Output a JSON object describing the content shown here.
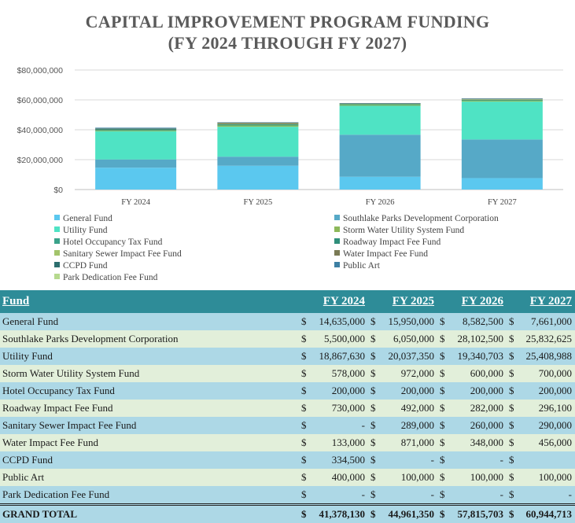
{
  "title_line1": "CAPITAL IMPROVEMENT PROGRAM FUNDING",
  "title_line2": "(FY 2024 THROUGH FY 2027)",
  "chart_data": {
    "type": "bar",
    "stacked": true,
    "categories": [
      "FY 2024",
      "FY 2025",
      "FY 2026",
      "FY 2027"
    ],
    "y_ticks": [
      "$0",
      "$20,000,000",
      "$40,000,000",
      "$60,000,000",
      "$80,000,000"
    ],
    "ylim": [
      0,
      80000000
    ],
    "series": [
      {
        "name": "General Fund",
        "color": "#5bc8ef",
        "values": [
          14635000,
          15950000,
          8582500,
          7661000
        ]
      },
      {
        "name": "Southlake Parks Development Corporation",
        "color": "#56a9c7",
        "values": [
          5500000,
          6050000,
          28102500,
          25832625
        ]
      },
      {
        "name": "Utility Fund",
        "color": "#4fe3c4",
        "values": [
          18867630,
          20037350,
          19340703,
          25408988
        ]
      },
      {
        "name": "Storm Water Utility System Fund",
        "color": "#8db85a",
        "values": [
          578000,
          972000,
          600000,
          700000
        ]
      },
      {
        "name": "Hotel Occupancy Tax Fund",
        "color": "#3aa28a",
        "values": [
          200000,
          200000,
          200000,
          200000
        ]
      },
      {
        "name": "Roadway Impact Fee Fund",
        "color": "#2f8f7a",
        "values": [
          730000,
          492000,
          282000,
          296100
        ]
      },
      {
        "name": "Sanitary Sewer Impact Fee Fund",
        "color": "#a3c46b",
        "values": [
          0,
          289000,
          260000,
          290000
        ]
      },
      {
        "name": "Water Impact Fee Fund",
        "color": "#7a7a55",
        "values": [
          133000,
          871000,
          348000,
          456000
        ]
      },
      {
        "name": "CCPD Fund",
        "color": "#2c6e6e",
        "values": [
          334500,
          0,
          0,
          0
        ]
      },
      {
        "name": "Public Art",
        "color": "#3d7fa3",
        "values": [
          400000,
          100000,
          100000,
          100000
        ]
      },
      {
        "name": "Park Dedication Fee Fund",
        "color": "#b6d98e",
        "values": [
          0,
          0,
          0,
          0
        ]
      }
    ]
  },
  "table": {
    "headers": [
      "Fund",
      "FY 2024",
      "FY 2025",
      "FY 2026",
      "FY 2027"
    ],
    "rows": [
      {
        "name": "General Fund",
        "vals": [
          "14,635,000",
          "15,950,000",
          "8,582,500",
          "7,661,000"
        ]
      },
      {
        "name": "Southlake Parks Development Corporation",
        "vals": [
          "5,500,000",
          "6,050,000",
          "28,102,500",
          "25,832,625"
        ]
      },
      {
        "name": "Utility Fund",
        "vals": [
          "18,867,630",
          "20,037,350",
          "19,340,703",
          "25,408,988"
        ]
      },
      {
        "name": "Storm Water Utility System Fund",
        "vals": [
          "578,000",
          "972,000",
          "600,000",
          "700,000"
        ]
      },
      {
        "name": "Hotel Occupancy Tax Fund",
        "vals": [
          "200,000",
          "200,000",
          "200,000",
          "200,000"
        ]
      },
      {
        "name": "Roadway Impact Fee Fund",
        "vals": [
          "730,000",
          "492,000",
          "282,000",
          "296,100"
        ]
      },
      {
        "name": "Sanitary Sewer Impact Fee Fund",
        "vals": [
          "-",
          "289,000",
          "260,000",
          "290,000"
        ]
      },
      {
        "name": "Water Impact Fee Fund",
        "vals": [
          "133,000",
          "871,000",
          "348,000",
          "456,000"
        ]
      },
      {
        "name": "CCPD Fund",
        "vals": [
          "334,500",
          "-",
          "-",
          ""
        ]
      },
      {
        "name": "Public Art",
        "vals": [
          "400,000",
          "100,000",
          "100,000",
          "100,000"
        ]
      },
      {
        "name": "Park Dedication Fee Fund",
        "vals": [
          "-",
          "-",
          "-",
          "-"
        ]
      }
    ],
    "total": {
      "name": "GRAND TOTAL",
      "vals": [
        "41,378,130",
        "44,961,350",
        "57,815,703",
        "60,944,713"
      ]
    },
    "currency": "$"
  }
}
